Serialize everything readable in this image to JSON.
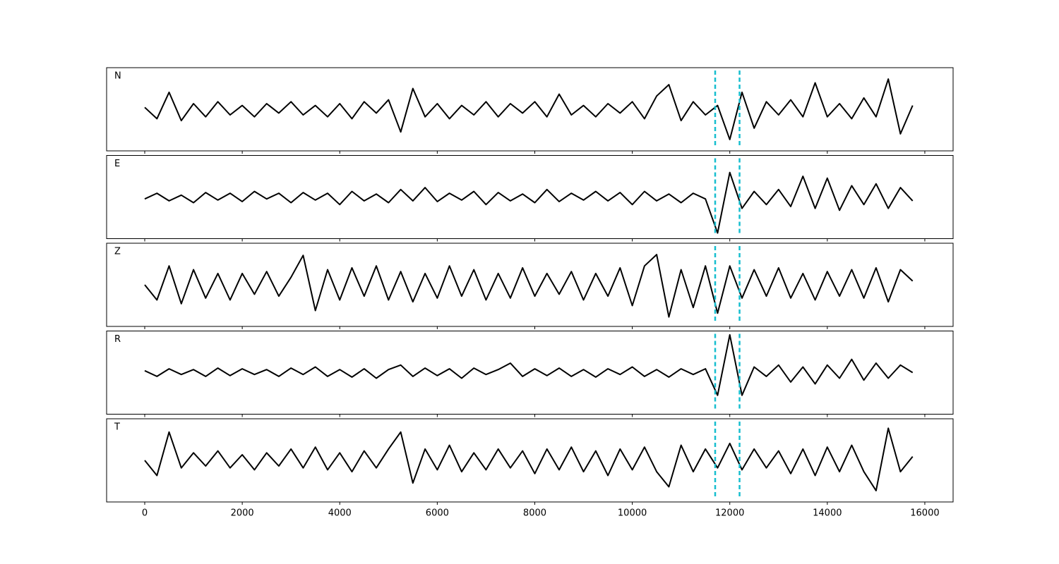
{
  "chart_data": [
    {
      "type": "line",
      "label": "N",
      "color": "#000000",
      "xlim": [
        -782,
        16580
      ],
      "ylim": [
        -1.1,
        1.1
      ],
      "xticks": [
        0,
        2000,
        4000,
        6000,
        8000,
        10000,
        12000,
        14000,
        16000
      ],
      "vlines": [
        11700,
        12200
      ],
      "vline_color": "#17becf",
      "x": [
        0,
        250,
        500,
        750,
        1000,
        1250,
        1500,
        1750,
        2000,
        2250,
        2500,
        2750,
        3000,
        3250,
        3500,
        3750,
        4000,
        4250,
        4500,
        4750,
        5000,
        5250,
        5500,
        5750,
        6000,
        6250,
        6500,
        6750,
        7000,
        7250,
        7500,
        7750,
        8000,
        8250,
        8500,
        8750,
        9000,
        9250,
        9500,
        9750,
        10000,
        10250,
        10500,
        10750,
        11000,
        11250,
        11500,
        11750,
        12000,
        12250,
        12500,
        12750,
        13000,
        13250,
        13500,
        13750,
        14000,
        14250,
        14500,
        14750,
        15000,
        15250,
        15500,
        15750
      ],
      "values": [
        0.05,
        -0.25,
        0.45,
        -0.3,
        0.15,
        -0.2,
        0.2,
        -0.15,
        0.1,
        -0.2,
        0.15,
        -0.1,
        0.2,
        -0.15,
        0.1,
        -0.2,
        0.15,
        -0.25,
        0.2,
        -0.1,
        0.25,
        -0.6,
        0.55,
        -0.2,
        0.15,
        -0.25,
        0.1,
        -0.15,
        0.2,
        -0.2,
        0.15,
        -0.1,
        0.2,
        -0.2,
        0.4,
        -0.15,
        0.1,
        -0.2,
        0.15,
        -0.1,
        0.2,
        -0.25,
        0.35,
        0.65,
        -0.3,
        0.2,
        -0.15,
        0.1,
        -0.8,
        0.45,
        -0.5,
        0.2,
        -0.15,
        0.25,
        -0.2,
        0.7,
        -0.2,
        0.15,
        -0.25,
        0.3,
        -0.2,
        0.8,
        -0.65,
        0.1
      ]
    },
    {
      "type": "line",
      "label": "E",
      "color": "#000000",
      "xlim": [
        -782,
        16580
      ],
      "ylim": [
        -1.1,
        1.1
      ],
      "xticks": [
        0,
        2000,
        4000,
        6000,
        8000,
        10000,
        12000,
        14000,
        16000
      ],
      "vlines": [
        11700,
        12200
      ],
      "vline_color": "#17becf",
      "x": [
        0,
        250,
        500,
        750,
        1000,
        1250,
        1500,
        1750,
        2000,
        2250,
        2500,
        2750,
        3000,
        3250,
        3500,
        3750,
        4000,
        4250,
        4500,
        4750,
        5000,
        5250,
        5500,
        5750,
        6000,
        6250,
        6500,
        6750,
        7000,
        7250,
        7500,
        7750,
        8000,
        8250,
        8500,
        8750,
        9000,
        9250,
        9500,
        9750,
        10000,
        10250,
        10500,
        10750,
        11000,
        11250,
        11500,
        11750,
        12000,
        12250,
        12500,
        12750,
        13000,
        13250,
        13500,
        13750,
        14000,
        14250,
        14500,
        14750,
        15000,
        15250,
        15500,
        15750
      ],
      "values": [
        -0.05,
        0.1,
        -0.1,
        0.05,
        -0.15,
        0.12,
        -0.08,
        0.1,
        -0.12,
        0.15,
        -0.05,
        0.1,
        -0.15,
        0.12,
        -0.08,
        0.1,
        -0.2,
        0.15,
        -0.1,
        0.08,
        -0.15,
        0.2,
        -0.1,
        0.25,
        -0.12,
        0.1,
        -0.08,
        0.15,
        -0.2,
        0.12,
        -0.1,
        0.08,
        -0.15,
        0.2,
        -0.12,
        0.1,
        -0.08,
        0.15,
        -0.1,
        0.12,
        -0.2,
        0.15,
        -0.1,
        0.08,
        -0.15,
        0.1,
        -0.05,
        -0.95,
        0.65,
        -0.3,
        0.15,
        -0.2,
        0.2,
        -0.25,
        0.55,
        -0.3,
        0.5,
        -0.35,
        0.3,
        -0.2,
        0.35,
        -0.3,
        0.25,
        -0.1
      ]
    },
    {
      "type": "line",
      "label": "Z",
      "color": "#000000",
      "xlim": [
        -782,
        16580
      ],
      "ylim": [
        -1.1,
        1.1
      ],
      "xticks": [
        0,
        2000,
        4000,
        6000,
        8000,
        10000,
        12000,
        14000,
        16000
      ],
      "vlines": [
        11700,
        12200
      ],
      "vline_color": "#17becf",
      "x": [
        0,
        250,
        500,
        750,
        1000,
        1250,
        1500,
        1750,
        2000,
        2250,
        2500,
        2750,
        3000,
        3250,
        3500,
        3750,
        4000,
        4250,
        4500,
        4750,
        5000,
        5250,
        5500,
        5750,
        6000,
        6250,
        6500,
        6750,
        7000,
        7250,
        7500,
        7750,
        8000,
        8250,
        8500,
        8750,
        9000,
        9250,
        9500,
        9750,
        10000,
        10250,
        10500,
        10750,
        11000,
        11250,
        11500,
        11750,
        12000,
        12250,
        12500,
        12750,
        13000,
        13250,
        13500,
        13750,
        14000,
        14250,
        14500,
        14750,
        15000,
        15250,
        15500,
        15750
      ],
      "values": [
        0.0,
        -0.4,
        0.5,
        -0.5,
        0.4,
        -0.35,
        0.3,
        -0.4,
        0.3,
        -0.25,
        0.35,
        -0.3,
        0.2,
        0.78,
        -0.68,
        0.4,
        -0.4,
        0.45,
        -0.3,
        0.5,
        -0.4,
        0.35,
        -0.45,
        0.3,
        -0.35,
        0.5,
        -0.3,
        0.4,
        -0.4,
        0.3,
        -0.35,
        0.45,
        -0.3,
        0.3,
        -0.25,
        0.35,
        -0.4,
        0.3,
        -0.3,
        0.45,
        -0.55,
        0.5,
        0.8,
        -0.85,
        0.4,
        -0.6,
        0.5,
        -0.75,
        0.5,
        -0.35,
        0.4,
        -0.3,
        0.45,
        -0.35,
        0.3,
        -0.4,
        0.35,
        -0.3,
        0.4,
        -0.35,
        0.45,
        -0.45,
        0.4,
        0.1
      ]
    },
    {
      "type": "line",
      "label": "R",
      "color": "#000000",
      "xlim": [
        -782,
        16580
      ],
      "ylim": [
        -1.1,
        1.1
      ],
      "xticks": [
        0,
        2000,
        4000,
        6000,
        8000,
        10000,
        12000,
        14000,
        16000
      ],
      "vlines": [
        11700,
        12200
      ],
      "vline_color": "#17becf",
      "x": [
        0,
        250,
        500,
        750,
        1000,
        1250,
        1500,
        1750,
        2000,
        2250,
        2500,
        2750,
        3000,
        3250,
        3500,
        3750,
        4000,
        4250,
        4500,
        4750,
        5000,
        5250,
        5500,
        5750,
        6000,
        6250,
        6500,
        6750,
        7000,
        7250,
        7500,
        7750,
        8000,
        8250,
        8500,
        8750,
        9000,
        9250,
        9500,
        9750,
        10000,
        10250,
        10500,
        10750,
        11000,
        11250,
        11500,
        11750,
        12000,
        12250,
        12500,
        12750,
        13000,
        13250,
        13500,
        13750,
        14000,
        14250,
        14500,
        14750,
        15000,
        15250,
        15500,
        15750
      ],
      "values": [
        0.05,
        -0.1,
        0.1,
        -0.05,
        0.08,
        -0.1,
        0.12,
        -0.08,
        0.1,
        -0.05,
        0.08,
        -0.1,
        0.12,
        -0.05,
        0.15,
        -0.1,
        0.08,
        -0.12,
        0.1,
        -0.15,
        0.08,
        0.2,
        -0.1,
        0.12,
        -0.08,
        0.1,
        -0.15,
        0.12,
        -0.05,
        0.08,
        0.25,
        -0.1,
        0.1,
        -0.08,
        0.12,
        -0.1,
        0.08,
        -0.12,
        0.1,
        -0.05,
        0.15,
        -0.1,
        0.08,
        -0.12,
        0.1,
        -0.05,
        0.1,
        -0.6,
        1.0,
        -0.6,
        0.15,
        -0.1,
        0.2,
        -0.25,
        0.15,
        -0.3,
        0.2,
        -0.15,
        0.35,
        -0.2,
        0.25,
        -0.15,
        0.2,
        0.0
      ]
    },
    {
      "type": "line",
      "label": "T",
      "color": "#000000",
      "xlim": [
        -782,
        16580
      ],
      "ylim": [
        -1.1,
        1.1
      ],
      "xticks": [
        0,
        2000,
        4000,
        6000,
        8000,
        10000,
        12000,
        14000,
        16000
      ],
      "vlines": [
        11700,
        12200
      ],
      "vline_color": "#17becf",
      "x": [
        0,
        250,
        500,
        750,
        1000,
        1250,
        1500,
        1750,
        2000,
        2250,
        2500,
        2750,
        3000,
        3250,
        3500,
        3750,
        4000,
        4250,
        4500,
        4750,
        5000,
        5250,
        5500,
        5750,
        6000,
        6250,
        6500,
        6750,
        7000,
        7250,
        7500,
        7750,
        8000,
        8250,
        8500,
        8750,
        9000,
        9250,
        9500,
        9750,
        10000,
        10250,
        10500,
        10750,
        11000,
        11250,
        11500,
        11750,
        12000,
        12250,
        12500,
        12750,
        13000,
        13250,
        13500,
        13750,
        14000,
        14250,
        14500,
        14750,
        15000,
        15250,
        15500,
        15750
      ],
      "values": [
        0.0,
        -0.4,
        0.75,
        -0.2,
        0.2,
        -0.15,
        0.25,
        -0.2,
        0.15,
        -0.25,
        0.2,
        -0.15,
        0.3,
        -0.2,
        0.35,
        -0.25,
        0.2,
        -0.3,
        0.25,
        -0.2,
        0.3,
        0.75,
        -0.6,
        0.3,
        -0.25,
        0.4,
        -0.3,
        0.2,
        -0.25,
        0.3,
        -0.2,
        0.25,
        -0.35,
        0.3,
        -0.25,
        0.35,
        -0.3,
        0.25,
        -0.4,
        0.3,
        -0.25,
        0.35,
        -0.3,
        -0.7,
        0.4,
        -0.3,
        0.3,
        -0.2,
        0.45,
        -0.25,
        0.3,
        -0.2,
        0.25,
        -0.35,
        0.3,
        -0.4,
        0.35,
        -0.3,
        0.4,
        -0.3,
        -0.8,
        0.85,
        -0.3,
        0.1
      ]
    }
  ]
}
